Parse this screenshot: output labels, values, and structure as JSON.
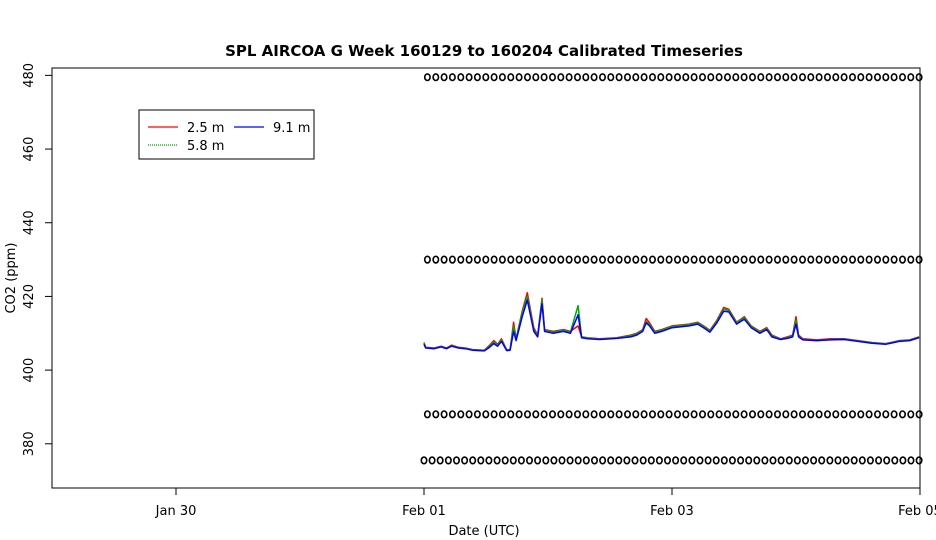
{
  "chart_data": {
    "type": "line",
    "title": "SPL AIRCOA G  Week 160129 to 160204  Calibrated Timeseries",
    "xlabel": "Date (UTC)",
    "ylabel": "CO2 (ppm)",
    "x_unit": "days",
    "x_ticks": [
      {
        "x": "2016-01-30",
        "label": "Jan 30"
      },
      {
        "x": "2016-02-01",
        "label": "Feb 01"
      },
      {
        "x": "2016-02-03",
        "label": "Feb 03"
      },
      {
        "x": "2016-02-05",
        "label": "Feb 05"
      }
    ],
    "y_ticks": [
      380,
      400,
      420,
      440,
      460,
      480
    ],
    "xlim": [
      "2016-01-29T00:00",
      "2016-02-05T00:00"
    ],
    "ylim": [
      368,
      482
    ],
    "legend": {
      "position": "top-left",
      "entries": [
        {
          "label": "2.5 m",
          "color": "#ff0000"
        },
        {
          "label": "5.8 m",
          "color": "#00aa00"
        },
        {
          "label": "9.1 m",
          "color": "#0000ff"
        }
      ]
    },
    "series": [
      {
        "name": "2.5 m",
        "color": "#ff0000",
        "points": [
          [
            "2016-02-01T00:00",
            407.5
          ],
          [
            "2016-02-01T00:20",
            406.2
          ],
          [
            "2016-02-01T02:00",
            406
          ],
          [
            "2016-02-01T03:20",
            406.5
          ],
          [
            "2016-02-01T04:20",
            406
          ],
          [
            "2016-02-01T05:20",
            406.8
          ],
          [
            "2016-02-01T06:40",
            406.2
          ],
          [
            "2016-02-01T08:00",
            406
          ],
          [
            "2016-02-01T09:20",
            405.6
          ],
          [
            "2016-02-01T11:40",
            405.4
          ],
          [
            "2016-02-01T12:30",
            406.5
          ],
          [
            "2016-02-01T13:30",
            408
          ],
          [
            "2016-02-01T14:15",
            407
          ],
          [
            "2016-02-01T15:00",
            408.5
          ],
          [
            "2016-02-01T16:00",
            405.5
          ],
          [
            "2016-02-01T16:40",
            405.6
          ],
          [
            "2016-02-01T17:20",
            413
          ],
          [
            "2016-02-01T17:50",
            408.5
          ],
          [
            "2016-02-01T19:00",
            416
          ],
          [
            "2016-02-01T20:00",
            421
          ],
          [
            "2016-02-01T21:15",
            411.5
          ],
          [
            "2016-02-01T22:00",
            409.5
          ],
          [
            "2016-02-01T22:50",
            419.5
          ],
          [
            "2016-02-01T23:20",
            411
          ],
          [
            "2016-02-02T01:00",
            410.5
          ],
          [
            "2016-02-02T03:00",
            411
          ],
          [
            "2016-02-02T04:20",
            410.5
          ],
          [
            "2016-02-02T05:50",
            412
          ],
          [
            "2016-02-02T06:30",
            409
          ],
          [
            "2016-02-02T07:40",
            408.8
          ],
          [
            "2016-02-02T10:00",
            408.5
          ],
          [
            "2016-02-02T13:20",
            408.8
          ],
          [
            "2016-02-02T16:00",
            409.5
          ],
          [
            "2016-02-02T17:10",
            410
          ],
          [
            "2016-02-02T18:20",
            411
          ],
          [
            "2016-02-02T19:00",
            414
          ],
          [
            "2016-02-02T19:40",
            412.8
          ],
          [
            "2016-02-02T20:40",
            410.5
          ],
          [
            "2016-02-02T22:00",
            411
          ],
          [
            "2016-02-03T00:00",
            412
          ],
          [
            "2016-02-03T03:20",
            412.5
          ],
          [
            "2016-02-03T05:00",
            413
          ],
          [
            "2016-02-03T06:20",
            411.8
          ],
          [
            "2016-02-03T07:20",
            410.8
          ],
          [
            "2016-02-03T08:40",
            413.5
          ],
          [
            "2016-02-03T10:00",
            417
          ],
          [
            "2016-02-03T11:00",
            416.5
          ],
          [
            "2016-02-03T12:30",
            413
          ],
          [
            "2016-02-03T14:00",
            414.5
          ],
          [
            "2016-02-03T15:20",
            412
          ],
          [
            "2016-02-03T17:00",
            410.5
          ],
          [
            "2016-02-03T18:20",
            411.5
          ],
          [
            "2016-02-03T19:20",
            409.5
          ],
          [
            "2016-02-03T21:00",
            408.5
          ],
          [
            "2016-02-03T22:20",
            409
          ],
          [
            "2016-02-03T23:20",
            409.5
          ],
          [
            "2016-02-04T00:00",
            414.5
          ],
          [
            "2016-02-04T00:30",
            409.5
          ],
          [
            "2016-02-04T01:20",
            408.5
          ],
          [
            "2016-02-04T04:00",
            408.2
          ],
          [
            "2016-02-04T06:40",
            408.5
          ],
          [
            "2016-02-04T09:20",
            408.5
          ],
          [
            "2016-02-04T12:00",
            408
          ],
          [
            "2016-02-04T14:40",
            407.5
          ],
          [
            "2016-02-04T17:20",
            407.2
          ],
          [
            "2016-02-04T20:00",
            408
          ],
          [
            "2016-02-04T22:00",
            408.2
          ],
          [
            "2016-02-04T23:50",
            409
          ]
        ]
      },
      {
        "name": "5.8 m",
        "color": "#00aa00",
        "points": [
          [
            "2016-02-01T00:00",
            407.3
          ],
          [
            "2016-02-01T00:20",
            406.1
          ],
          [
            "2016-02-01T02:00",
            405.9
          ],
          [
            "2016-02-01T03:20",
            406.4
          ],
          [
            "2016-02-01T04:20",
            405.9
          ],
          [
            "2016-02-01T05:20",
            406.6
          ],
          [
            "2016-02-01T06:40",
            406.1
          ],
          [
            "2016-02-01T08:00",
            405.9
          ],
          [
            "2016-02-01T09:20",
            405.5
          ],
          [
            "2016-02-01T11:40",
            405.3
          ],
          [
            "2016-02-01T12:30",
            406.3
          ],
          [
            "2016-02-01T13:30",
            407.6
          ],
          [
            "2016-02-01T14:15",
            406.8
          ],
          [
            "2016-02-01T15:00",
            408.2
          ],
          [
            "2016-02-01T16:00",
            405.4
          ],
          [
            "2016-02-01T16:40",
            405.5
          ],
          [
            "2016-02-01T17:20",
            412
          ],
          [
            "2016-02-01T17:50",
            408.3
          ],
          [
            "2016-02-01T19:00",
            415.5
          ],
          [
            "2016-02-01T20:00",
            420
          ],
          [
            "2016-02-01T21:15",
            411
          ],
          [
            "2016-02-01T22:00",
            409.3
          ],
          [
            "2016-02-01T22:50",
            419
          ],
          [
            "2016-02-01T23:20",
            410.8
          ],
          [
            "2016-02-02T01:00",
            410.3
          ],
          [
            "2016-02-02T03:00",
            410.8
          ],
          [
            "2016-02-02T04:20",
            410.3
          ],
          [
            "2016-02-02T05:50",
            417.5
          ],
          [
            "2016-02-02T06:30",
            409
          ],
          [
            "2016-02-02T07:40",
            408.7
          ],
          [
            "2016-02-02T10:00",
            408.4
          ],
          [
            "2016-02-02T13:20",
            408.7
          ],
          [
            "2016-02-02T16:00",
            409.3
          ],
          [
            "2016-02-02T17:10",
            409.8
          ],
          [
            "2016-02-02T18:20",
            410.8
          ],
          [
            "2016-02-02T19:00",
            413.2
          ],
          [
            "2016-02-02T19:40",
            412.4
          ],
          [
            "2016-02-02T20:40",
            410.3
          ],
          [
            "2016-02-02T22:00",
            410.8
          ],
          [
            "2016-02-03T00:00",
            411.8
          ],
          [
            "2016-02-03T03:20",
            412.3
          ],
          [
            "2016-02-03T05:00",
            412.8
          ],
          [
            "2016-02-03T06:20",
            411.6
          ],
          [
            "2016-02-03T07:20",
            410.6
          ],
          [
            "2016-02-03T08:40",
            413.2
          ],
          [
            "2016-02-03T10:00",
            416.5
          ],
          [
            "2016-02-03T11:00",
            416.2
          ],
          [
            "2016-02-03T12:30",
            412.8
          ],
          [
            "2016-02-03T14:00",
            414.2
          ],
          [
            "2016-02-03T15:20",
            411.8
          ],
          [
            "2016-02-03T17:00",
            410.3
          ],
          [
            "2016-02-03T18:20",
            411.2
          ],
          [
            "2016-02-03T19:20",
            409.3
          ],
          [
            "2016-02-03T21:00",
            408.4
          ],
          [
            "2016-02-03T22:20",
            408.8
          ],
          [
            "2016-02-03T23:20",
            409.3
          ],
          [
            "2016-02-04T00:00",
            413.5
          ],
          [
            "2016-02-04T00:30",
            409.2
          ],
          [
            "2016-02-04T01:20",
            408.3
          ],
          [
            "2016-02-04T04:00",
            408
          ],
          [
            "2016-02-04T06:40",
            408.3
          ],
          [
            "2016-02-04T09:20",
            408.4
          ],
          [
            "2016-02-04T12:00",
            407.9
          ],
          [
            "2016-02-04T14:40",
            407.4
          ],
          [
            "2016-02-04T17:20",
            407.1
          ],
          [
            "2016-02-04T20:00",
            407.9
          ],
          [
            "2016-02-04T22:00",
            408.1
          ],
          [
            "2016-02-04T23:50",
            408.9
          ]
        ]
      },
      {
        "name": "9.1 m",
        "color": "#0000ff",
        "points": [
          [
            "2016-02-01T00:00",
            407
          ],
          [
            "2016-02-01T00:20",
            406
          ],
          [
            "2016-02-01T02:00",
            405.8
          ],
          [
            "2016-02-01T03:20",
            406.3
          ],
          [
            "2016-02-01T04:20",
            405.8
          ],
          [
            "2016-02-01T05:20",
            406.5
          ],
          [
            "2016-02-01T06:40",
            406
          ],
          [
            "2016-02-01T08:00",
            405.8
          ],
          [
            "2016-02-01T09:20",
            405.4
          ],
          [
            "2016-02-01T11:40",
            405.2
          ],
          [
            "2016-02-01T12:30",
            406
          ],
          [
            "2016-02-01T13:30",
            407.2
          ],
          [
            "2016-02-01T14:15",
            406.5
          ],
          [
            "2016-02-01T15:00",
            407.8
          ],
          [
            "2016-02-01T16:00",
            405.3
          ],
          [
            "2016-02-01T16:40",
            405.4
          ],
          [
            "2016-02-01T17:20",
            410.5
          ],
          [
            "2016-02-01T17:50",
            408
          ],
          [
            "2016-02-01T19:00",
            414.5
          ],
          [
            "2016-02-01T20:00",
            419
          ],
          [
            "2016-02-01T21:15",
            410.5
          ],
          [
            "2016-02-01T22:00",
            409
          ],
          [
            "2016-02-01T22:50",
            418
          ],
          [
            "2016-02-01T23:20",
            410.5
          ],
          [
            "2016-02-02T01:00",
            410
          ],
          [
            "2016-02-02T03:00",
            410.5
          ],
          [
            "2016-02-02T04:20",
            410
          ],
          [
            "2016-02-02T05:50",
            415
          ],
          [
            "2016-02-02T06:30",
            408.8
          ],
          [
            "2016-02-02T07:40",
            408.5
          ],
          [
            "2016-02-02T10:00",
            408.3
          ],
          [
            "2016-02-02T13:20",
            408.6
          ],
          [
            "2016-02-02T16:00",
            409
          ],
          [
            "2016-02-02T17:10",
            409.5
          ],
          [
            "2016-02-02T18:20",
            410.5
          ],
          [
            "2016-02-02T19:00",
            412.8
          ],
          [
            "2016-02-02T19:40",
            412
          ],
          [
            "2016-02-02T20:40",
            410
          ],
          [
            "2016-02-02T22:00",
            410.5
          ],
          [
            "2016-02-03T00:00",
            411.5
          ],
          [
            "2016-02-03T03:20",
            412
          ],
          [
            "2016-02-03T05:00",
            412.5
          ],
          [
            "2016-02-03T06:20",
            411.3
          ],
          [
            "2016-02-03T07:20",
            410.3
          ],
          [
            "2016-02-03T08:40",
            412.8
          ],
          [
            "2016-02-03T10:00",
            416
          ],
          [
            "2016-02-03T11:00",
            415.8
          ],
          [
            "2016-02-03T12:30",
            412.5
          ],
          [
            "2016-02-03T14:00",
            413.8
          ],
          [
            "2016-02-03T15:20",
            411.5
          ],
          [
            "2016-02-03T17:00",
            410
          ],
          [
            "2016-02-03T18:20",
            411
          ],
          [
            "2016-02-03T19:20",
            409
          ],
          [
            "2016-02-03T21:00",
            408.3
          ],
          [
            "2016-02-03T22:20",
            408.6
          ],
          [
            "2016-02-03T23:20",
            409
          ],
          [
            "2016-02-04T00:00",
            412.5
          ],
          [
            "2016-02-04T00:30",
            409
          ],
          [
            "2016-02-04T01:20",
            408.2
          ],
          [
            "2016-02-04T04:00",
            408
          ],
          [
            "2016-02-04T06:40",
            408.2
          ],
          [
            "2016-02-04T09:20",
            408.3
          ],
          [
            "2016-02-04T12:00",
            407.8
          ],
          [
            "2016-02-04T14:40",
            407.3
          ],
          [
            "2016-02-04T17:20",
            407
          ],
          [
            "2016-02-04T20:00",
            407.8
          ],
          [
            "2016-02-04T22:00",
            408
          ],
          [
            "2016-02-04T23:50",
            408.8
          ]
        ]
      }
    ],
    "marker_rows": [
      {
        "y": 479.5,
        "x_start": "2016-02-01T00:40",
        "x_end": "2016-02-04T23:50",
        "count": 60
      },
      {
        "y": 430,
        "x_start": "2016-02-01T00:40",
        "x_end": "2016-02-04T23:50",
        "count": 60
      },
      {
        "y": 388,
        "x_start": "2016-02-01T00:40",
        "x_end": "2016-02-04T23:50",
        "count": 60
      },
      {
        "y": 375.5,
        "x_start": "2016-02-01T00:00",
        "x_end": "2016-02-04T23:50",
        "count": 62
      }
    ]
  }
}
